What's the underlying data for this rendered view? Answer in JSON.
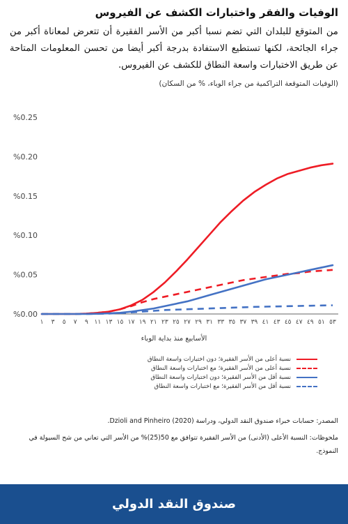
{
  "title": "الوفيات والفقر واختبارات الكشف عن الفيروس",
  "subtitle": "من المتوقع للبلدان التي تضم نسبا أكبر من الأسر الفقيرة أن تتعرض لمعاناة أكبر من جراء الجائحة، لكنها تستطيع الاستفادة بدرجة أكبر أيضا من تحسن المعلومات المتاحة عن طريق الاختبارات واسعة النطاق للكشف عن الفيروس.",
  "note": "(الوفيات المتوقعة التراكمية من جراء الوباء، % من السكان)",
  "source": "المصدر: حسابات خبراء صندوق النقد الدولي، ودراسة Dzioli and Pinheiro (2020).",
  "notes": "ملحوظات: النسبة الأعلى (الأدنى) من الأسر الفقيرة تتوافق مع 50(25)% من الأسر التي تعاني من شح السيولة في النموذج.",
  "footer": "صندوق النقد الدولي",
  "chart_data": {
    "type": "line",
    "xlabel": "الأسابيع منذ بداية الوباء",
    "ylabel": "",
    "x": [
      1,
      3,
      5,
      7,
      9,
      11,
      13,
      15,
      17,
      19,
      21,
      23,
      25,
      27,
      29,
      31,
      33,
      35,
      37,
      39,
      41,
      43,
      45,
      47,
      49,
      51,
      53
    ],
    "x_tick_labels": [
      "١",
      "٣",
      "٥",
      "٧",
      "٩",
      "١١",
      "١٣",
      "١٥",
      "١٧",
      "١٩",
      "٢١",
      "٢٣",
      "٢٥",
      "٢٧",
      "٢٩",
      "٣١",
      "٣٣",
      "٣٥",
      "٣٧",
      "٣٩",
      "٤١",
      "٤٣",
      "٤٥",
      "٤٧",
      "٤٩",
      "٥١",
      "٥٣"
    ],
    "y_ticks": [
      0,
      0.05,
      0.1,
      0.15,
      0.2,
      0.25
    ],
    "y_tick_labels": [
      "%0.00",
      "%0.05",
      "%0.10",
      "%0.15",
      "%0.20",
      "%0.25"
    ],
    "ylim": [
      0,
      0.25
    ],
    "xlim": [
      1,
      54
    ],
    "grid": false,
    "legend_position": "bottom",
    "series": [
      {
        "name": "نسبة أعلى من الأسر الفقيرة؛ دون اختبارات واسعة النطاق",
        "color": "#ee1c25",
        "dash": "solid",
        "values": [
          0,
          0,
          0,
          0,
          0.0005,
          0.0015,
          0.003,
          0.006,
          0.011,
          0.018,
          0.028,
          0.04,
          0.054,
          0.069,
          0.085,
          0.101,
          0.117,
          0.131,
          0.144,
          0.155,
          0.164,
          0.172,
          0.178,
          0.182,
          0.186,
          0.189,
          0.191
        ]
      },
      {
        "name": "نسبة أعلى من الأسر الفقيرة؛ مع اختبارات واسعة النطاق",
        "color": "#ee1c25",
        "dash": "dashed",
        "values": [
          0,
          0,
          0,
          0,
          0.0005,
          0.0015,
          0.003,
          0.006,
          0.01,
          0.015,
          0.019,
          0.022,
          0.025,
          0.028,
          0.031,
          0.034,
          0.037,
          0.04,
          0.043,
          0.045,
          0.047,
          0.049,
          0.051,
          0.052,
          0.054,
          0.055,
          0.056
        ]
      },
      {
        "name": "نسبة أقل من الأسر الفقيرة؛ دون اختبارات واسعة النطاق",
        "color": "#4472c4",
        "dash": "solid",
        "values": [
          0,
          0,
          0,
          0,
          0,
          0.0003,
          0.0008,
          0.0015,
          0.003,
          0.005,
          0.007,
          0.01,
          0.013,
          0.016,
          0.02,
          0.024,
          0.028,
          0.032,
          0.036,
          0.04,
          0.044,
          0.047,
          0.05,
          0.053,
          0.056,
          0.059,
          0.062
        ]
      },
      {
        "name": "نسبة أقل من الأسر الفقيرة؛ مع اختبارات واسعة النطاق",
        "color": "#4472c4",
        "dash": "dashed",
        "values": [
          0,
          0,
          0,
          0,
          0,
          0.0002,
          0.0005,
          0.001,
          0.002,
          0.003,
          0.004,
          0.005,
          0.0055,
          0.006,
          0.0065,
          0.007,
          0.0075,
          0.008,
          0.0085,
          0.009,
          0.0093,
          0.0096,
          0.0099,
          0.0102,
          0.0105,
          0.0108,
          0.011
        ]
      }
    ]
  }
}
